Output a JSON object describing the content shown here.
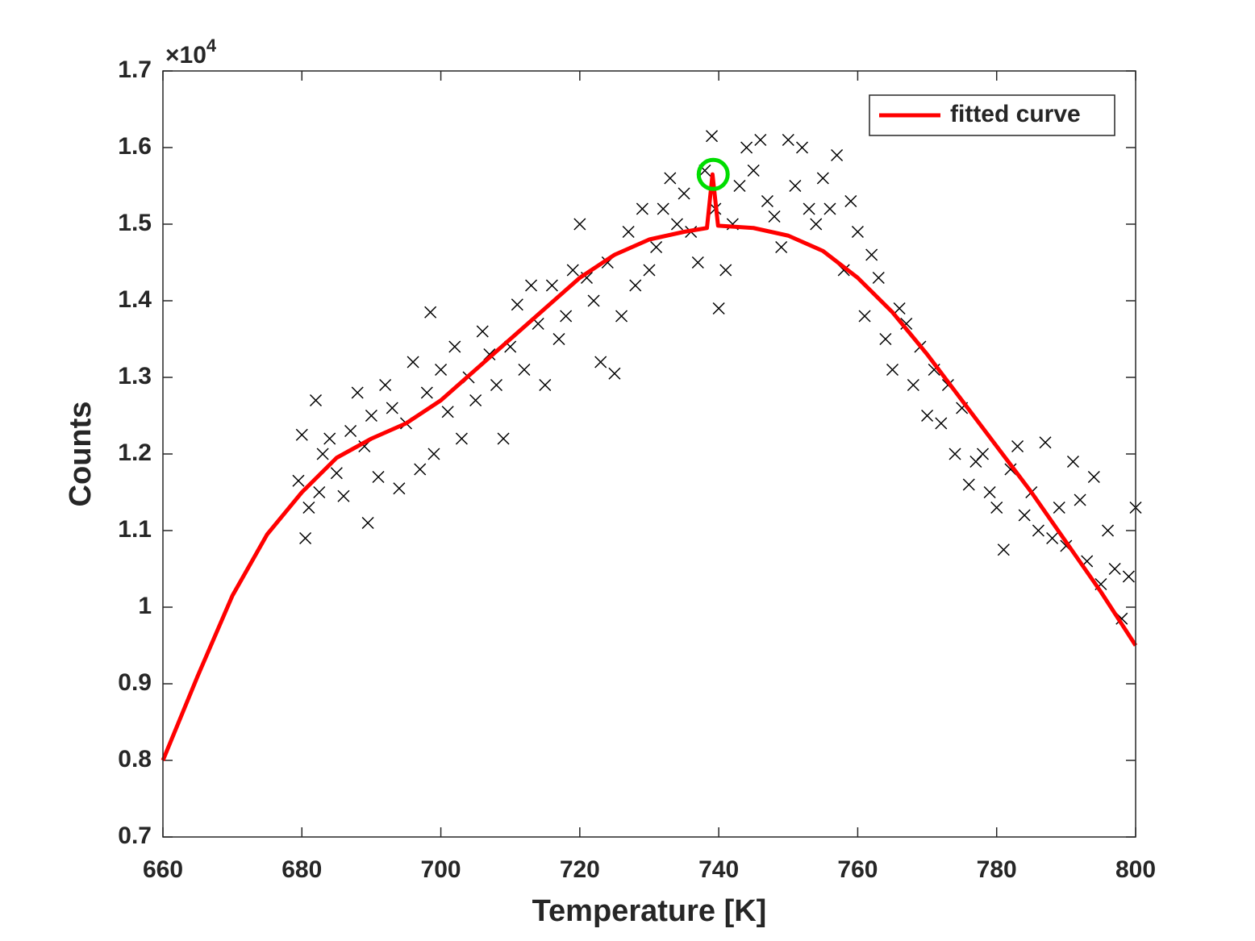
{
  "chart_data": {
    "type": "scatter",
    "xlabel": "Temperature [K]",
    "ylabel": "Counts",
    "y_multiplier": "×10",
    "y_exponent": "4",
    "xlim": [
      660,
      800
    ],
    "xticks": [
      660,
      680,
      700,
      720,
      740,
      760,
      780,
      800
    ],
    "ylim": [
      0.7,
      1.7
    ],
    "yticks": [
      0.7,
      0.8,
      0.9,
      1,
      1.1,
      1.2,
      1.3,
      1.4,
      1.5,
      1.6,
      1.7
    ],
    "grid": false,
    "legend": "top-right",
    "series": [
      {
        "mode": "markers",
        "marker": "x",
        "color": "#000000",
        "x": [
          679.5,
          680,
          680.5,
          681,
          682,
          682.5,
          683,
          684,
          685,
          686,
          687,
          688,
          689,
          689.5,
          690,
          691,
          692,
          693,
          694,
          695,
          696,
          697,
          698,
          698.5,
          699,
          700,
          701,
          702,
          703,
          704,
          705,
          706,
          707,
          708,
          709,
          710,
          711,
          712,
          713,
          714,
          715,
          716,
          717,
          718,
          719,
          720,
          721,
          722,
          723,
          724,
          725,
          726,
          727,
          728,
          729,
          730,
          731,
          732,
          733,
          734,
          735,
          736,
          737,
          738,
          739,
          739.5,
          740,
          741,
          742,
          743,
          744,
          745,
          746,
          747,
          748,
          749,
          750,
          751,
          752,
          753,
          754,
          755,
          756,
          757,
          758,
          759,
          760,
          761,
          762,
          763,
          764,
          765,
          766,
          767,
          768,
          769,
          770,
          771,
          772,
          773,
          774,
          775,
          776,
          777,
          778,
          779,
          780,
          781,
          782,
          783,
          784,
          785,
          786,
          787,
          788,
          789,
          790,
          791,
          792,
          793,
          794,
          795,
          796,
          797,
          798,
          799,
          800
        ],
        "values": [
          1.165,
          1.225,
          1.09,
          1.13,
          1.27,
          1.15,
          1.2,
          1.22,
          1.175,
          1.145,
          1.23,
          1.28,
          1.21,
          1.11,
          1.25,
          1.17,
          1.29,
          1.26,
          1.155,
          1.24,
          1.32,
          1.18,
          1.28,
          1.385,
          1.2,
          1.31,
          1.255,
          1.34,
          1.22,
          1.3,
          1.27,
          1.36,
          1.33,
          1.29,
          1.22,
          1.34,
          1.395,
          1.31,
          1.42,
          1.37,
          1.29,
          1.42,
          1.35,
          1.38,
          1.44,
          1.5,
          1.43,
          1.4,
          1.32,
          1.45,
          1.305,
          1.38,
          1.49,
          1.42,
          1.52,
          1.44,
          1.47,
          1.52,
          1.56,
          1.5,
          1.54,
          1.49,
          1.45,
          1.57,
          1.615,
          1.52,
          1.39,
          1.44,
          1.5,
          1.55,
          1.6,
          1.57,
          1.61,
          1.53,
          1.51,
          1.47,
          1.61,
          1.55,
          1.6,
          1.52,
          1.5,
          1.56,
          1.52,
          1.59,
          1.44,
          1.53,
          1.49,
          1.38,
          1.46,
          1.43,
          1.35,
          1.31,
          1.39,
          1.37,
          1.29,
          1.34,
          1.25,
          1.31,
          1.24,
          1.29,
          1.2,
          1.26,
          1.16,
          1.19,
          1.2,
          1.15,
          1.13,
          1.075,
          1.18,
          1.21,
          1.12,
          1.15,
          1.1,
          1.215,
          1.09,
          1.13,
          1.08,
          1.19,
          1.14,
          1.06,
          1.17,
          1.03,
          1.1,
          1.05,
          0.985,
          1.04,
          1.13
        ]
      },
      {
        "mode": "line",
        "name": "fitted curve",
        "color": "#ff0000",
        "x": [
          660,
          665,
          670,
          675,
          680,
          685,
          690,
          695,
          700,
          705,
          710,
          715,
          720,
          725,
          730,
          735,
          738.3,
          739.1,
          739.9,
          745,
          750,
          755,
          760,
          765,
          770,
          775,
          780,
          785,
          790,
          795,
          800
        ],
        "values": [
          0.8,
          0.91,
          1.015,
          1.095,
          1.15,
          1.195,
          1.22,
          1.24,
          1.27,
          1.31,
          1.35,
          1.39,
          1.43,
          1.46,
          1.48,
          1.49,
          1.495,
          1.565,
          1.498,
          1.495,
          1.485,
          1.465,
          1.43,
          1.385,
          1.33,
          1.27,
          1.21,
          1.15,
          1.085,
          1.02,
          0.95
        ]
      }
    ],
    "highlight": {
      "x": 739.2,
      "y": 1.565,
      "color": "#00dd00"
    }
  }
}
